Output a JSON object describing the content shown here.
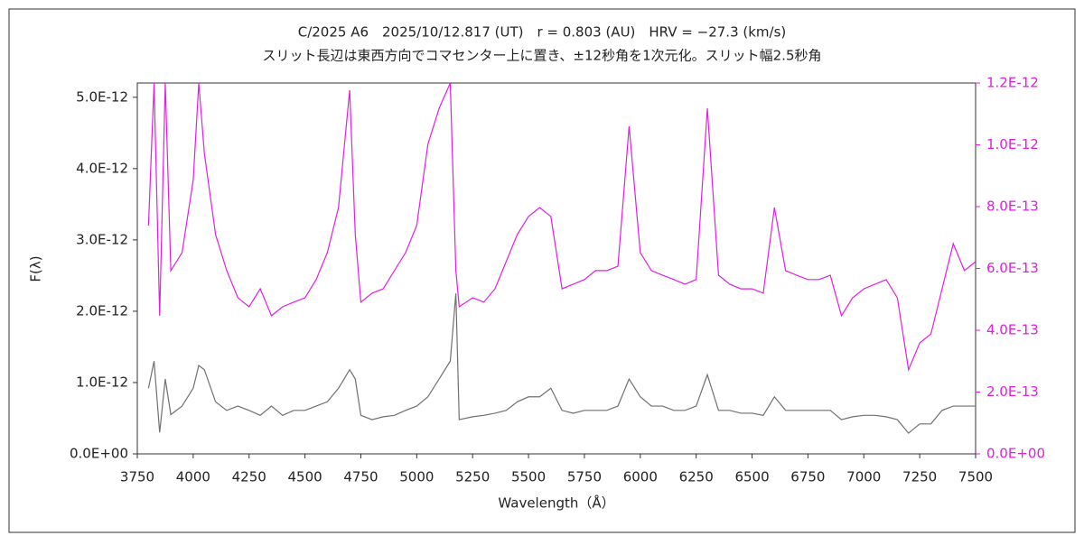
{
  "chart_data": {
    "type": "line",
    "title": "C/2025 A6　2025/10/12.817 (UT)　r = 0.803 (AU)　HRV = −27.3 (km/s)",
    "subtitle": "スリット長辺は東西方向でコマセンター上に置き、±12秒角を1次元化。スリット幅2.5秒角",
    "x_label": "Wavelength（Å）",
    "y_label": "F(λ)",
    "x": [
      3800,
      3825,
      3850,
      3875,
      3900,
      3950,
      4000,
      4025,
      4050,
      4100,
      4150,
      4200,
      4250,
      4300,
      4350,
      4400,
      4450,
      4500,
      4550,
      4600,
      4650,
      4700,
      4725,
      4750,
      4800,
      4850,
      4900,
      4950,
      5000,
      5050,
      5100,
      5150,
      5175,
      5190,
      5250,
      5300,
      5350,
      5400,
      5450,
      5500,
      5550,
      5600,
      5650,
      5700,
      5750,
      5800,
      5850,
      5900,
      5950,
      6000,
      6050,
      6100,
      6150,
      6200,
      6250,
      6300,
      6350,
      6400,
      6450,
      6500,
      6550,
      6600,
      6650,
      6700,
      6750,
      6800,
      6850,
      6900,
      6950,
      7000,
      7050,
      7100,
      7150,
      7200,
      7250,
      7300,
      7350,
      7400,
      7450,
      7500
    ],
    "xlim": [
      3750,
      7500
    ],
    "xticks": [
      3750,
      4000,
      4250,
      4500,
      4750,
      5000,
      5250,
      5500,
      5750,
      6000,
      6250,
      6500,
      6750,
      7000,
      7250,
      7500
    ],
    "ylim": [
      0,
      5.2e-12
    ],
    "yticks": [
      {
        "value": 0,
        "label": "0.0E+00"
      },
      {
        "value": 1e-12,
        "label": "1.0E-12"
      },
      {
        "value": 2e-12,
        "label": "2.0E-12"
      },
      {
        "value": 3e-12,
        "label": "3.0E-12"
      },
      {
        "value": 4e-12,
        "label": "4.0E-12"
      },
      {
        "value": 5e-12,
        "label": "5.0E-12"
      }
    ],
    "y2lim": [
      0,
      1.2e-12
    ],
    "y2ticks": [
      {
        "value": 0,
        "label": "0.0E+00"
      },
      {
        "value": 2e-13,
        "label": "2.0E-13"
      },
      {
        "value": 4e-13,
        "label": "4.0E-13"
      },
      {
        "value": 6e-13,
        "label": "6.0E-13"
      },
      {
        "value": 8e-13,
        "label": "8.0E-13"
      },
      {
        "value": 1e-12,
        "label": "1.0E-12"
      },
      {
        "value": 1.2e-12,
        "label": "1.2E-12"
      }
    ],
    "y2_color": "#e020e0",
    "series": [
      {
        "color": "#707070",
        "values": [
          9.2e-13,
          1.3e-12,
          3e-13,
          1.05e-12,
          5.5e-13,
          6.7e-13,
          9.2e-13,
          1.24e-12,
          1.18e-12,
          7.3e-13,
          6.1e-13,
          6.7e-13,
          6.1e-13,
          5.4e-13,
          6.7e-13,
          5.4e-13,
          6.1e-13,
          6.1e-13,
          6.7e-13,
          7.3e-13,
          9.2e-13,
          1.18e-12,
          1.05e-12,
          5.4e-13,
          4.8e-13,
          5.2e-13,
          5.4e-13,
          6.1e-13,
          6.7e-13,
          8e-13,
          1.05e-12,
          1.3e-12,
          2.25e-12,
          4.8e-13,
          5.2e-13,
          5.4e-13,
          5.7e-13,
          6.1e-13,
          7.3e-13,
          8e-13,
          8e-13,
          9.2e-13,
          6.1e-13,
          5.7e-13,
          6.1e-13,
          6.1e-13,
          6.1e-13,
          6.7e-13,
          1.05e-12,
          8e-13,
          6.7e-13,
          6.7e-13,
          6.1e-13,
          6.1e-13,
          6.7e-13,
          1.11e-12,
          6.1e-13,
          6.1e-13,
          5.7e-13,
          5.7e-13,
          5.4e-13,
          8e-13,
          6.1e-13,
          6.1e-13,
          6.1e-13,
          6.1e-13,
          6.1e-13,
          4.8e-13,
          5.2e-13,
          5.4e-13,
          5.4e-13,
          5.2e-13,
          4.8e-13,
          2.9e-13,
          4.2e-13,
          4.2e-13,
          6.1e-13,
          6.7e-13,
          6.7e-13,
          6.7e-13
        ]
      },
      {
        "color": "#e020e0",
        "axis": "y2",
        "values": [
          7.39e-13,
          1.2e-12,
          4.47e-13,
          1.2e-12,
          5.93e-13,
          6.51e-13,
          8.85e-13,
          1.2e-12,
          9.72e-13,
          7.1e-13,
          5.93e-13,
          5.05e-13,
          4.76e-13,
          5.34e-13,
          4.47e-13,
          4.76e-13,
          4.91e-13,
          5.05e-13,
          5.64e-13,
          6.51e-13,
          7.97e-13,
          1.177e-12,
          7.1e-13,
          4.91e-13,
          5.2e-13,
          5.34e-13,
          5.93e-13,
          6.51e-13,
          7.39e-13,
          1.002e-12,
          1.118e-12,
          1.2e-12,
          5.93e-13,
          4.76e-13,
          5.05e-13,
          4.91e-13,
          5.34e-13,
          6.22e-13,
          7.1e-13,
          7.68e-13,
          7.97e-13,
          7.68e-13,
          5.34e-13,
          5.49e-13,
          5.64e-13,
          5.93e-13,
          5.93e-13,
          6.07e-13,
          1.06e-12,
          6.51e-13,
          5.93e-13,
          5.78e-13,
          5.64e-13,
          5.49e-13,
          5.64e-13,
          1.118e-12,
          5.78e-13,
          5.49e-13,
          5.34e-13,
          5.34e-13,
          5.2e-13,
          7.97e-13,
          5.93e-13,
          5.78e-13,
          5.64e-13,
          5.64e-13,
          5.78e-13,
          4.47e-13,
          5.05e-13,
          5.34e-13,
          5.49e-13,
          5.64e-13,
          5.05e-13,
          2.72e-13,
          3.59e-13,
          3.88e-13,
          5.34e-13,
          6.8e-13,
          5.93e-13,
          6.22e-13
        ]
      }
    ]
  }
}
